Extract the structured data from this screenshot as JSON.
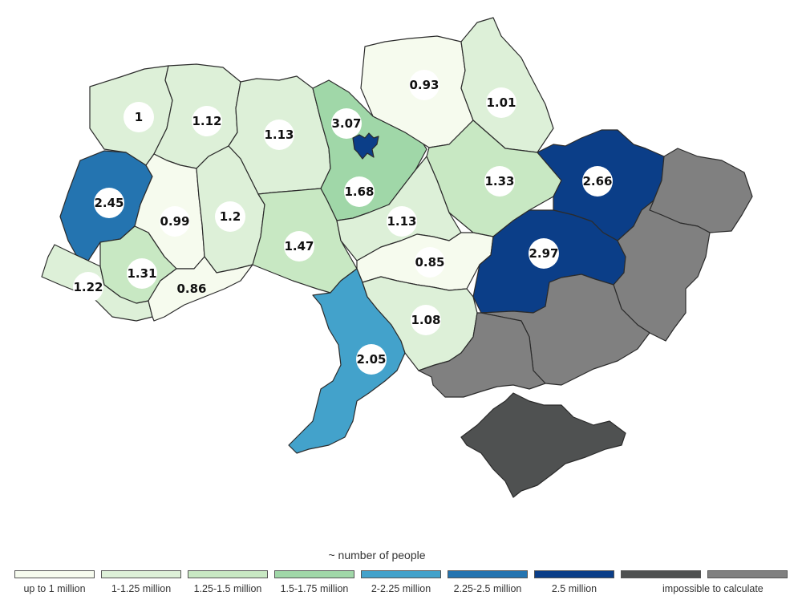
{
  "legend": {
    "title": "~ number of people",
    "items": [
      {
        "label": "up to 1 million",
        "color": "#f6fbee"
      },
      {
        "label": "1-1.25 million",
        "color": "#ddf0d8"
      },
      {
        "label": "1.25-1.5 million",
        "color": "#c8e8c3"
      },
      {
        "label": "1.5-1.75 million",
        "color": "#a0d7a8"
      },
      {
        "label": "2-2.25 million",
        "color": "#43a2cb"
      },
      {
        "label": "2.25-2.5 million",
        "color": "#2474b0"
      },
      {
        "label": "2.5 million",
        "color": "#0b3e88"
      },
      {
        "label": "impossible to calculate",
        "color": "#4f5151"
      },
      {
        "label": "",
        "color": "#808080"
      }
    ]
  },
  "regions": [
    {
      "name": "volyn",
      "value": "1",
      "color": "#ddf0d8"
    },
    {
      "name": "rivne",
      "value": "1.12",
      "color": "#ddf0d8"
    },
    {
      "name": "zhytomyr",
      "value": "1.13",
      "color": "#ddf0d8"
    },
    {
      "name": "kyiv-oblast",
      "value": "1.68",
      "color": "#a0d7a8"
    },
    {
      "name": "kyiv-city",
      "value": "3.07",
      "color": "#0b3e88"
    },
    {
      "name": "chernihiv",
      "value": "0.93",
      "color": "#f6fbee"
    },
    {
      "name": "sumy",
      "value": "1.01",
      "color": "#ddf0d8"
    },
    {
      "name": "poltava",
      "value": "1.33",
      "color": "#c8e8c3"
    },
    {
      "name": "kharkiv",
      "value": "2.66",
      "color": "#0b3e88"
    },
    {
      "name": "lviv",
      "value": "2.45",
      "color": "#2474b0"
    },
    {
      "name": "ternopil",
      "value": "0.99",
      "color": "#f6fbee"
    },
    {
      "name": "khmelnytskyi",
      "value": "1.2",
      "color": "#ddf0d8"
    },
    {
      "name": "vinnytsia",
      "value": "1.47",
      "color": "#c8e8c3"
    },
    {
      "name": "cherkasy",
      "value": "1.13",
      "color": "#ddf0d8"
    },
    {
      "name": "kirovohrad",
      "value": "0.85",
      "color": "#f6fbee"
    },
    {
      "name": "dnipropetrovsk",
      "value": "2.97",
      "color": "#0b3e88"
    },
    {
      "name": "zakarpattia",
      "value": "1.22",
      "color": "#ddf0d8"
    },
    {
      "name": "ivano-frankivsk",
      "value": "1.31",
      "color": "#c8e8c3"
    },
    {
      "name": "chernivtsi",
      "value": "0.86",
      "color": "#f6fbee"
    },
    {
      "name": "odesa",
      "value": "2.05",
      "color": "#43a2cb"
    },
    {
      "name": "mykolaiv",
      "value": "1.08",
      "color": "#ddf0d8"
    },
    {
      "name": "luhansk",
      "value": "",
      "color": "#808080"
    },
    {
      "name": "donetsk",
      "value": "",
      "color": "#808080"
    },
    {
      "name": "zaporizhzhia",
      "value": "",
      "color": "#808080"
    },
    {
      "name": "kherson",
      "value": "",
      "color": "#808080"
    },
    {
      "name": "crimea",
      "value": "",
      "color": "#4f5151"
    }
  ]
}
